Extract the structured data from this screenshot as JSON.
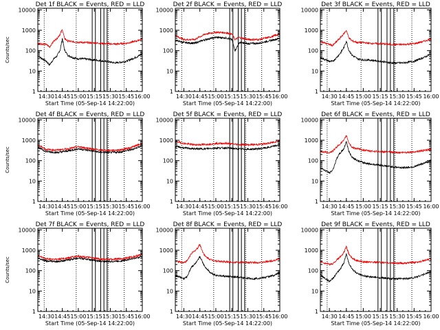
{
  "colors": {
    "events": "#000000",
    "lld": "#ee0000",
    "axes": "#000000",
    "grid": "#000000"
  },
  "chart_data": [
    {
      "type": "line",
      "title": "Det 1f BLACK = Events, RED = LLD",
      "xlabel": "Start Time (05-Sep-14 14:22:00)",
      "ylabel": "Counts/sec",
      "x_ticks": [
        "14:30",
        "14:45",
        "15:00",
        "15:15",
        "15:30",
        "15:45",
        "16:00"
      ],
      "y_ticks": [
        "1",
        "10",
        "100",
        "1000",
        "10000"
      ],
      "y_scale": "log",
      "xlim": [
        "14:22",
        "16:00"
      ],
      "ylim": [
        1,
        12000
      ],
      "series": [
        {
          "name": "Events",
          "x": [
            "14:22",
            "14:30",
            "14:33",
            "14:37",
            "14:40",
            "14:43",
            "14:45",
            "14:47",
            "14:50",
            "14:55",
            "15:00",
            "15:05",
            "15:15",
            "15:25",
            "15:35",
            "15:45",
            "15:55",
            "16:00"
          ],
          "y": [
            55,
            30,
            20,
            40,
            55,
            110,
            400,
            110,
            60,
            45,
            40,
            40,
            35,
            30,
            25,
            30,
            50,
            70
          ]
        },
        {
          "name": "LLD",
          "x": [
            "14:22",
            "14:30",
            "14:33",
            "14:37",
            "14:40",
            "14:43",
            "14:45",
            "14:47",
            "14:50",
            "14:55",
            "15:00",
            "15:05",
            "15:15",
            "15:25",
            "15:35",
            "15:45",
            "15:55",
            "16:00"
          ],
          "y": [
            230,
            200,
            150,
            300,
            400,
            650,
            1100,
            400,
            300,
            270,
            260,
            250,
            240,
            220,
            210,
            230,
            300,
            380
          ]
        }
      ]
    },
    {
      "type": "line",
      "title": "Det 2f BLACK = Events, RED = LLD",
      "xlabel": "Start Time (05-Sep-14 14:22:00)",
      "ylabel": "",
      "x_ticks": [
        "14:30",
        "14:45",
        "15:00",
        "15:15",
        "15:30",
        "15:45",
        "16:00"
      ],
      "y_ticks": [
        "1",
        "10",
        "100",
        "1000",
        "10000"
      ],
      "y_scale": "log",
      "xlim": [
        "14:22",
        "16:00"
      ],
      "ylim": [
        1,
        12000
      ],
      "series": [
        {
          "name": "Events",
          "x": [
            "14:22",
            "14:30",
            "14:40",
            "14:50",
            "15:00",
            "15:10",
            "15:15",
            "15:18",
            "15:22",
            "15:30",
            "15:40",
            "15:50",
            "16:00"
          ],
          "y": [
            320,
            250,
            230,
            350,
            450,
            420,
            350,
            100,
            250,
            220,
            230,
            300,
            400
          ]
        },
        {
          "name": "LLD",
          "x": [
            "14:22",
            "14:30",
            "14:40",
            "14:50",
            "15:00",
            "15:10",
            "15:15",
            "15:18",
            "15:22",
            "15:30",
            "15:40",
            "15:50",
            "16:00"
          ],
          "y": [
            550,
            350,
            350,
            650,
            800,
            750,
            650,
            350,
            450,
            350,
            350,
            450,
            650
          ]
        }
      ]
    },
    {
      "type": "line",
      "title": "Det 3f BLACK = Events, RED = LLD",
      "xlabel": "Start Time (05-Sep-14 14:22:00)",
      "ylabel": "",
      "x_ticks": [
        "14:30",
        "14:45",
        "15:00",
        "15:15",
        "15:30",
        "15:45",
        "16:00"
      ],
      "y_ticks": [
        "1",
        "10",
        "100",
        "1000",
        "10000"
      ],
      "y_scale": "log",
      "xlim": [
        "14:22",
        "16:00"
      ],
      "ylim": [
        1,
        12000
      ],
      "series": [
        {
          "name": "Events",
          "x": [
            "14:22",
            "14:30",
            "14:33",
            "14:37",
            "14:40",
            "14:43",
            "14:45",
            "14:47",
            "14:50",
            "14:55",
            "15:00",
            "15:05",
            "15:15",
            "15:25",
            "15:35",
            "15:45",
            "15:55",
            "16:00"
          ],
          "y": [
            45,
            30,
            30,
            50,
            80,
            150,
            300,
            110,
            60,
            40,
            35,
            35,
            30,
            25,
            25,
            30,
            50,
            70
          ]
        },
        {
          "name": "LLD",
          "x": [
            "14:22",
            "14:30",
            "14:33",
            "14:37",
            "14:40",
            "14:43",
            "14:45",
            "14:47",
            "14:50",
            "14:55",
            "15:00",
            "15:05",
            "15:15",
            "15:25",
            "15:35",
            "15:45",
            "15:55",
            "16:00"
          ],
          "y": [
            280,
            200,
            180,
            300,
            450,
            700,
            1000,
            450,
            300,
            250,
            250,
            230,
            220,
            200,
            200,
            220,
            300,
            380
          ]
        }
      ]
    },
    {
      "type": "line",
      "title": "Det 4f BLACK = Events, RED = LLD",
      "xlabel": "Start Time (05-Sep-14 14:22:00)",
      "ylabel": "Counts/sec",
      "x_ticks": [
        "14:30",
        "14:45",
        "15:00",
        "15:15",
        "15:30",
        "15:45",
        "16:00"
      ],
      "y_ticks": [
        "1",
        "10",
        "100",
        "1000",
        "10000"
      ],
      "y_scale": "log",
      "xlim": [
        "14:22",
        "16:00"
      ],
      "ylim": [
        1,
        12000
      ],
      "series": [
        {
          "name": "Events",
          "x": [
            "14:22",
            "14:30",
            "14:40",
            "14:50",
            "15:00",
            "15:10",
            "15:20",
            "15:30",
            "15:40",
            "15:50",
            "16:00"
          ],
          "y": [
            450,
            280,
            250,
            300,
            380,
            320,
            260,
            250,
            270,
            350,
            550
          ]
        },
        {
          "name": "LLD",
          "x": [
            "14:22",
            "14:30",
            "14:40",
            "14:50",
            "15:00",
            "15:10",
            "15:20",
            "15:30",
            "15:40",
            "15:50",
            "16:00"
          ],
          "y": [
            600,
            350,
            330,
            380,
            480,
            400,
            330,
            320,
            340,
            450,
            700
          ]
        }
      ]
    },
    {
      "type": "line",
      "title": "Det 5f BLACK = Events, RED = LLD",
      "xlabel": "Start Time (05-Sep-14 14:22:00)",
      "ylabel": "",
      "x_ticks": [
        "14:30",
        "14:45",
        "15:00",
        "15:15",
        "15:30",
        "15:45",
        "16:00"
      ],
      "y_ticks": [
        "1",
        "10",
        "100",
        "1000",
        "10000"
      ],
      "y_scale": "log",
      "xlim": [
        "14:22",
        "16:00"
      ],
      "ylim": [
        1,
        12000
      ],
      "series": [
        {
          "name": "Events",
          "x": [
            "14:22",
            "14:30",
            "14:40",
            "14:50",
            "15:00",
            "15:10",
            "15:20",
            "15:30",
            "15:40",
            "15:50",
            "16:00"
          ],
          "y": [
            500,
            420,
            380,
            380,
            420,
            420,
            380,
            360,
            380,
            450,
            600
          ]
        },
        {
          "name": "LLD",
          "x": [
            "14:22",
            "14:30",
            "14:40",
            "14:50",
            "15:00",
            "15:10",
            "15:20",
            "15:30",
            "15:40",
            "15:50",
            "16:00"
          ],
          "y": [
            900,
            700,
            600,
            620,
            700,
            700,
            620,
            600,
            620,
            720,
            950
          ]
        }
      ]
    },
    {
      "type": "line",
      "title": "Det 6f BLACK = Events, RED = LLD",
      "xlabel": "Start Time (05-Sep-14 14:22:00)",
      "ylabel": "",
      "x_ticks": [
        "14:30",
        "14:45",
        "15:00",
        "15:15",
        "15:30",
        "15:45",
        "16:00"
      ],
      "y_ticks": [
        "1",
        "10",
        "100",
        "1000",
        "10000"
      ],
      "y_scale": "log",
      "xlim": [
        "14:22",
        "16:00"
      ],
      "ylim": [
        1,
        12000
      ],
      "series": [
        {
          "name": "Events",
          "x": [
            "14:22",
            "14:30",
            "14:33",
            "14:37",
            "14:40",
            "14:43",
            "14:45",
            "14:47",
            "14:50",
            "14:55",
            "15:00",
            "15:05",
            "15:15",
            "15:25",
            "15:35",
            "15:45",
            "15:55",
            "16:00"
          ],
          "y": [
            45,
            25,
            35,
            150,
            250,
            400,
            900,
            300,
            150,
            100,
            80,
            70,
            60,
            50,
            45,
            50,
            80,
            100
          ]
        },
        {
          "name": "LLD",
          "x": [
            "14:22",
            "14:30",
            "14:33",
            "14:37",
            "14:40",
            "14:43",
            "14:45",
            "14:47",
            "14:50",
            "14:55",
            "15:00",
            "15:05",
            "15:15",
            "15:25",
            "15:35",
            "15:45",
            "15:55",
            "16:00"
          ],
          "y": [
            280,
            250,
            300,
            500,
            700,
            1000,
            1800,
            800,
            450,
            380,
            330,
            300,
            280,
            260,
            250,
            270,
            320,
            350
          ]
        }
      ]
    },
    {
      "type": "line",
      "title": "Det 7f BLACK = Events, RED = LLD",
      "xlabel": "Start Time (05-Sep-14 14:22:00)",
      "ylabel": "Counts/sec",
      "x_ticks": [
        "14:30",
        "14:45",
        "15:00",
        "15:15",
        "15:30",
        "15:45",
        "16:00"
      ],
      "y_ticks": [
        "1",
        "10",
        "100",
        "1000",
        "10000"
      ],
      "y_scale": "log",
      "xlim": [
        "14:22",
        "16:00"
      ],
      "ylim": [
        1,
        12000
      ],
      "series": [
        {
          "name": "Events",
          "x": [
            "14:22",
            "14:30",
            "14:40",
            "14:50",
            "15:00",
            "15:10",
            "15:20",
            "15:30",
            "15:40",
            "15:50",
            "16:00"
          ],
          "y": [
            420,
            300,
            280,
            330,
            420,
            350,
            290,
            280,
            300,
            380,
            500
          ]
        },
        {
          "name": "LLD",
          "x": [
            "14:22",
            "14:30",
            "14:40",
            "14:50",
            "15:00",
            "15:10",
            "15:20",
            "15:30",
            "15:40",
            "15:50",
            "16:00"
          ],
          "y": [
            550,
            380,
            360,
            420,
            520,
            440,
            370,
            360,
            380,
            460,
            620
          ]
        }
      ]
    },
    {
      "type": "line",
      "title": "Det 8f BLACK = Events, RED = LLD",
      "xlabel": "Start Time (05-Sep-14 14:22:00)",
      "ylabel": "",
      "x_ticks": [
        "14:30",
        "14:45",
        "15:00",
        "15:15",
        "15:30",
        "15:45",
        "16:00"
      ],
      "y_ticks": [
        "1",
        "10",
        "100",
        "1000",
        "10000"
      ],
      "y_scale": "log",
      "xlim": [
        "14:22",
        "16:00"
      ],
      "ylim": [
        1,
        12000
      ],
      "series": [
        {
          "name": "Events",
          "x": [
            "14:22",
            "14:30",
            "14:33",
            "14:37",
            "14:40",
            "14:43",
            "14:45",
            "14:47",
            "14:50",
            "14:55",
            "15:00",
            "15:05",
            "15:15",
            "15:25",
            "15:35",
            "15:45",
            "15:55",
            "16:00"
          ],
          "y": [
            60,
            40,
            50,
            150,
            200,
            300,
            500,
            300,
            150,
            80,
            60,
            55,
            50,
            45,
            40,
            45,
            60,
            80
          ]
        },
        {
          "name": "LLD",
          "x": [
            "14:22",
            "14:30",
            "14:33",
            "14:37",
            "14:40",
            "14:43",
            "14:45",
            "14:47",
            "14:50",
            "14:55",
            "15:00",
            "15:05",
            "15:15",
            "15:25",
            "15:35",
            "15:45",
            "15:55",
            "16:00"
          ],
          "y": [
            300,
            250,
            300,
            700,
            900,
            1300,
            2000,
            1000,
            500,
            350,
            300,
            280,
            260,
            250,
            250,
            260,
            320,
            380
          ]
        }
      ]
    },
    {
      "type": "line",
      "title": "Det 9f BLACK = Events, RED = LLD",
      "xlabel": "Start Time (05-Sep-14 14:22:00)",
      "ylabel": "",
      "x_ticks": [
        "14:30",
        "14:45",
        "15:00",
        "15:15",
        "15:30",
        "15:45",
        "16:00"
      ],
      "y_ticks": [
        "1",
        "10",
        "100",
        "1000",
        "10000"
      ],
      "y_scale": "log",
      "xlim": [
        "14:22",
        "16:00"
      ],
      "ylim": [
        1,
        12000
      ],
      "series": [
        {
          "name": "Events",
          "x": [
            "14:22",
            "14:30",
            "14:33",
            "14:37",
            "14:40",
            "14:43",
            "14:45",
            "14:47",
            "14:50",
            "14:55",
            "15:00",
            "15:05",
            "15:15",
            "15:25",
            "15:35",
            "15:45",
            "15:55",
            "16:00"
          ],
          "y": [
            60,
            30,
            40,
            80,
            130,
            250,
            700,
            250,
            120,
            70,
            55,
            50,
            45,
            40,
            40,
            45,
            70,
            90
          ]
        },
        {
          "name": "LLD",
          "x": [
            "14:22",
            "14:30",
            "14:33",
            "14:37",
            "14:40",
            "14:43",
            "14:45",
            "14:47",
            "14:50",
            "14:55",
            "15:00",
            "15:05",
            "15:15",
            "15:25",
            "15:35",
            "15:45",
            "15:55",
            "16:00"
          ],
          "y": [
            280,
            200,
            220,
            350,
            500,
            800,
            1500,
            700,
            400,
            300,
            270,
            260,
            250,
            240,
            230,
            250,
            320,
            380
          ]
        }
      ]
    }
  ]
}
